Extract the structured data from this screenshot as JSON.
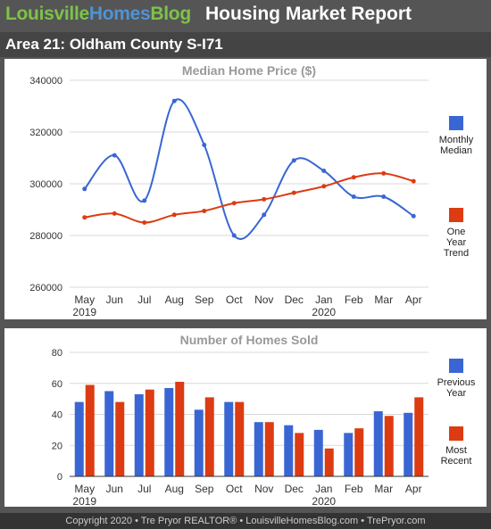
{
  "header": {
    "brand_part1": "Louisville",
    "brand_part2": "Homes",
    "brand_part3": "Blog",
    "report_title": "Housing Market Report",
    "area_title": "Area 21: Oldham County S-I71"
  },
  "footer": {
    "text": "Copyright 2020 • Tre Pryor REALTOR® • LouisvilleHomesBlog.com • TrePryor.com"
  },
  "colors": {
    "blue": "#3a66d4",
    "red": "#dd3b12",
    "grid": "#d9d9d9",
    "background": "#555555"
  },
  "chart_data": [
    {
      "type": "line",
      "title": "Median Home Price ($)",
      "categories": [
        "May",
        "Jun",
        "Jul",
        "Aug",
        "Sep",
        "Oct",
        "Nov",
        "Dec",
        "Jan",
        "Feb",
        "Mar",
        "Apr"
      ],
      "category_sublabels": [
        "2019",
        "",
        "",
        "",
        "",
        "",
        "",
        "",
        "2020",
        "",
        "",
        ""
      ],
      "ylim": [
        260000,
        340000
      ],
      "yticks": [
        "260000",
        "280000",
        "300000",
        "320000",
        "340000"
      ],
      "grid": true,
      "legend_position": "right",
      "series": [
        {
          "name": "Monthly Median",
          "name_lines": [
            "Monthly",
            "Median"
          ],
          "color": "#3a66d4",
          "smooth": true,
          "values": [
            298000,
            311000,
            293500,
            332000,
            315000,
            280000,
            288000,
            309000,
            305000,
            295000,
            295000,
            287500
          ]
        },
        {
          "name": "One Year Trend",
          "name_lines": [
            "One",
            "Year",
            "Trend"
          ],
          "color": "#dd3b12",
          "smooth": true,
          "values": [
            287000,
            288500,
            285000,
            288000,
            289500,
            292500,
            294000,
            296500,
            299000,
            302500,
            304000,
            301000
          ]
        }
      ]
    },
    {
      "type": "bar",
      "title": "Number of Homes Sold",
      "categories": [
        "May",
        "Jun",
        "Jul",
        "Aug",
        "Sep",
        "Oct",
        "Nov",
        "Dec",
        "Jan",
        "Feb",
        "Mar",
        "Apr"
      ],
      "category_sublabels": [
        "2019",
        "",
        "",
        "",
        "",
        "",
        "",
        "",
        "2020",
        "",
        "",
        ""
      ],
      "ylim": [
        0,
        80
      ],
      "yticks": [
        "0",
        "20",
        "40",
        "60",
        "80"
      ],
      "grid": true,
      "legend_position": "right",
      "series": [
        {
          "name": "Previous Year",
          "name_lines": [
            "Previous",
            "Year"
          ],
          "color": "#3a66d4",
          "values": [
            48,
            55,
            53,
            57,
            43,
            48,
            35,
            33,
            30,
            28,
            42,
            41
          ]
        },
        {
          "name": "Most Recent",
          "name_lines": [
            "Most",
            "Recent"
          ],
          "color": "#dd3b12",
          "values": [
            59,
            48,
            56,
            61,
            51,
            48,
            35,
            28,
            18,
            31,
            39,
            51
          ]
        }
      ]
    }
  ]
}
